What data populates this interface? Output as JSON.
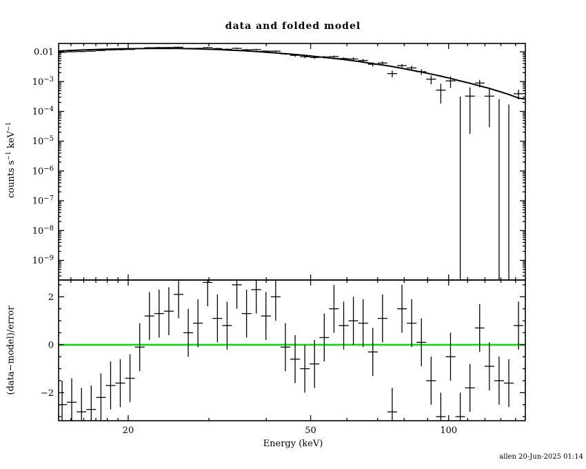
{
  "page": {
    "title": "data and folded model",
    "xlabel": "Energy (keV)",
    "footer": "allen 20-Jun-2025 01:14",
    "counts_ylabel": {
      "p0": "counts s",
      "s0": "−1",
      "p1": " keV",
      "s1": "−1"
    },
    "resid_ylabel": "(data−model)/error"
  },
  "chart_data": {
    "type": "scatter",
    "title": "data and folded model",
    "subtitle": "two-panel X-ray spectral fit (data with errors, folded model line, residuals)",
    "xlabel": "Energy (keV)",
    "x_scale": "log",
    "xlim": [
      14.1,
      147
    ],
    "x_major_ticks": [
      20,
      50,
      100
    ],
    "x_minor_ticks": [
      15,
      16,
      17,
      18,
      19,
      30,
      40,
      60,
      70,
      80,
      90,
      110,
      120,
      130,
      140
    ],
    "bin_half_ratio": 1.0247,
    "footer": "allen 20-Jun-2025 01:14",
    "top_panel": {
      "ylabel": "counts s^-1 keV^-1",
      "y_scale": "log",
      "ylog_lim": [
        -9.66,
        -1.72
      ],
      "y_major_labels": [
        {
          "log": -2,
          "plain": "0.01"
        },
        {
          "log": -3,
          "exp": "−3"
        },
        {
          "log": -4,
          "exp": "−4"
        },
        {
          "log": -5,
          "exp": "−5"
        },
        {
          "log": -6,
          "exp": "−6"
        },
        {
          "log": -7,
          "exp": "−7"
        },
        {
          "log": -8,
          "exp": "−8"
        },
        {
          "log": -9,
          "exp": "−9"
        }
      ],
      "model_color": "#000000",
      "data_color": "#000000",
      "model_endpoints": [
        [
          14.1,
          0.0106
        ],
        [
          147,
          0.00026
        ]
      ]
    },
    "residual_panel": {
      "ylabel": "(data-model)/error",
      "y_scale": "linear",
      "ylim": [
        -3.17,
        2.7
      ],
      "y_major_ticks": [
        -2,
        0,
        2
      ],
      "y_minor_step": 0.5,
      "zero_line_color": "#00dd00",
      "point_error": 1
    },
    "points": [
      {
        "e": 14.35,
        "m": 0.0107,
        "r": -2.5,
        "f": 0.04
      },
      {
        "e": 15.06,
        "m": 0.0111,
        "r": -2.4,
        "f": 0.04
      },
      {
        "e": 15.82,
        "m": 0.0115,
        "r": -2.8,
        "f": 0.04
      },
      {
        "e": 16.61,
        "m": 0.0118,
        "r": -2.7,
        "f": 0.04
      },
      {
        "e": 17.44,
        "m": 0.0121,
        "r": -2.2,
        "f": 0.04
      },
      {
        "e": 18.31,
        "m": 0.0124,
        "r": -1.7,
        "f": 0.04
      },
      {
        "e": 19.22,
        "m": 0.0126,
        "r": -1.6,
        "f": 0.04
      },
      {
        "e": 20.18,
        "m": 0.0127,
        "r": -1.4,
        "f": 0.04
      },
      {
        "e": 21.19,
        "m": 0.0128,
        "r": -0.1,
        "f": 0.05
      },
      {
        "e": 22.25,
        "m": 0.0129,
        "r": 1.2,
        "f": 0.05
      },
      {
        "e": 23.36,
        "m": 0.013,
        "r": 1.3,
        "f": 0.05
      },
      {
        "e": 24.53,
        "m": 0.013,
        "r": 1.4,
        "f": 0.05
      },
      {
        "e": 25.76,
        "m": 0.0129,
        "r": 2.1,
        "f": 0.05
      },
      {
        "e": 27.04,
        "m": 0.0127,
        "r": 0.5,
        "f": 0.05
      },
      {
        "e": 28.39,
        "m": 0.0125,
        "r": 0.9,
        "f": 0.05
      },
      {
        "e": 29.81,
        "m": 0.0122,
        "r": 2.6,
        "f": 0.05
      },
      {
        "e": 31.31,
        "m": 0.0119,
        "r": 1.1,
        "f": 0.07
      },
      {
        "e": 32.87,
        "m": 0.0115,
        "r": 0.8,
        "f": 0.07
      },
      {
        "e": 34.52,
        "m": 0.0111,
        "r": 2.5,
        "f": 0.07
      },
      {
        "e": 36.24,
        "m": 0.0107,
        "r": 1.3,
        "f": 0.07
      },
      {
        "e": 38.05,
        "m": 0.0102,
        "r": 2.3,
        "f": 0.07
      },
      {
        "e": 39.95,
        "m": 0.0097,
        "r": 1.2,
        "f": 0.07
      },
      {
        "e": 41.95,
        "m": 0.0092,
        "r": 2.0,
        "f": 0.07
      },
      {
        "e": 44.05,
        "m": 0.0086,
        "r": -0.1,
        "f": 0.07
      },
      {
        "e": 46.25,
        "m": 0.0081,
        "r": -0.6,
        "f": 0.1
      },
      {
        "e": 48.56,
        "m": 0.0076,
        "r": -1.0,
        "f": 0.1
      },
      {
        "e": 50.99,
        "m": 0.007,
        "r": -0.8,
        "f": 0.1
      },
      {
        "e": 53.54,
        "m": 0.0065,
        "r": 0.3,
        "f": 0.1
      },
      {
        "e": 56.22,
        "m": 0.006,
        "r": 1.5,
        "f": 0.1
      },
      {
        "e": 59.03,
        "m": 0.0055,
        "r": 0.8,
        "f": 0.1
      },
      {
        "e": 61.98,
        "m": 0.005,
        "r": 1.0,
        "f": 0.15
      },
      {
        "e": 65.08,
        "m": 0.0045,
        "r": 0.9,
        "f": 0.15
      },
      {
        "e": 68.33,
        "m": 0.004,
        "r": -0.3,
        "f": 0.15
      },
      {
        "e": 71.75,
        "m": 0.0036,
        "r": 1.1,
        "f": 0.15
      },
      {
        "e": 75.33,
        "m": 0.0032,
        "r": -2.8,
        "f": 0.15
      },
      {
        "e": 79.1,
        "m": 0.0028,
        "r": 1.5,
        "f": 0.15
      },
      {
        "e": 83.06,
        "m": 0.0024,
        "r": 0.9,
        "f": 0.22
      },
      {
        "e": 87.21,
        "m": 0.0021,
        "r": 0.1,
        "f": 0.22
      },
      {
        "e": 91.57,
        "m": 0.0018,
        "r": -1.5,
        "f": 0.22
      },
      {
        "e": 96.15,
        "m": 0.00152,
        "r": -3.0,
        "f": 0.22
      },
      {
        "e": 100.96,
        "m": 0.00128,
        "r": -0.5,
        "f": 0.35
      },
      {
        "e": 106.01,
        "m": 0.00105,
        "r": -3.0,
        "f": 0.35,
        "floor": true
      },
      {
        "e": 111.31,
        "m": 0.00088,
        "r": -1.8,
        "f": 0.35
      },
      {
        "e": 116.87,
        "m": 0.00072,
        "r": 0.7,
        "f": 0.35
      },
      {
        "e": 122.72,
        "m": 0.00059,
        "r": -0.9,
        "f": 0.5
      },
      {
        "e": 128.85,
        "m": 0.00047,
        "r": -1.5,
        "f": 0.9,
        "floor": true
      },
      {
        "e": 135.29,
        "m": 0.00037,
        "r": -1.6,
        "f": 0.9,
        "floor": true
      },
      {
        "e": 142.06,
        "m": 0.00028,
        "r": 0.8,
        "f": 0.5
      }
    ]
  }
}
